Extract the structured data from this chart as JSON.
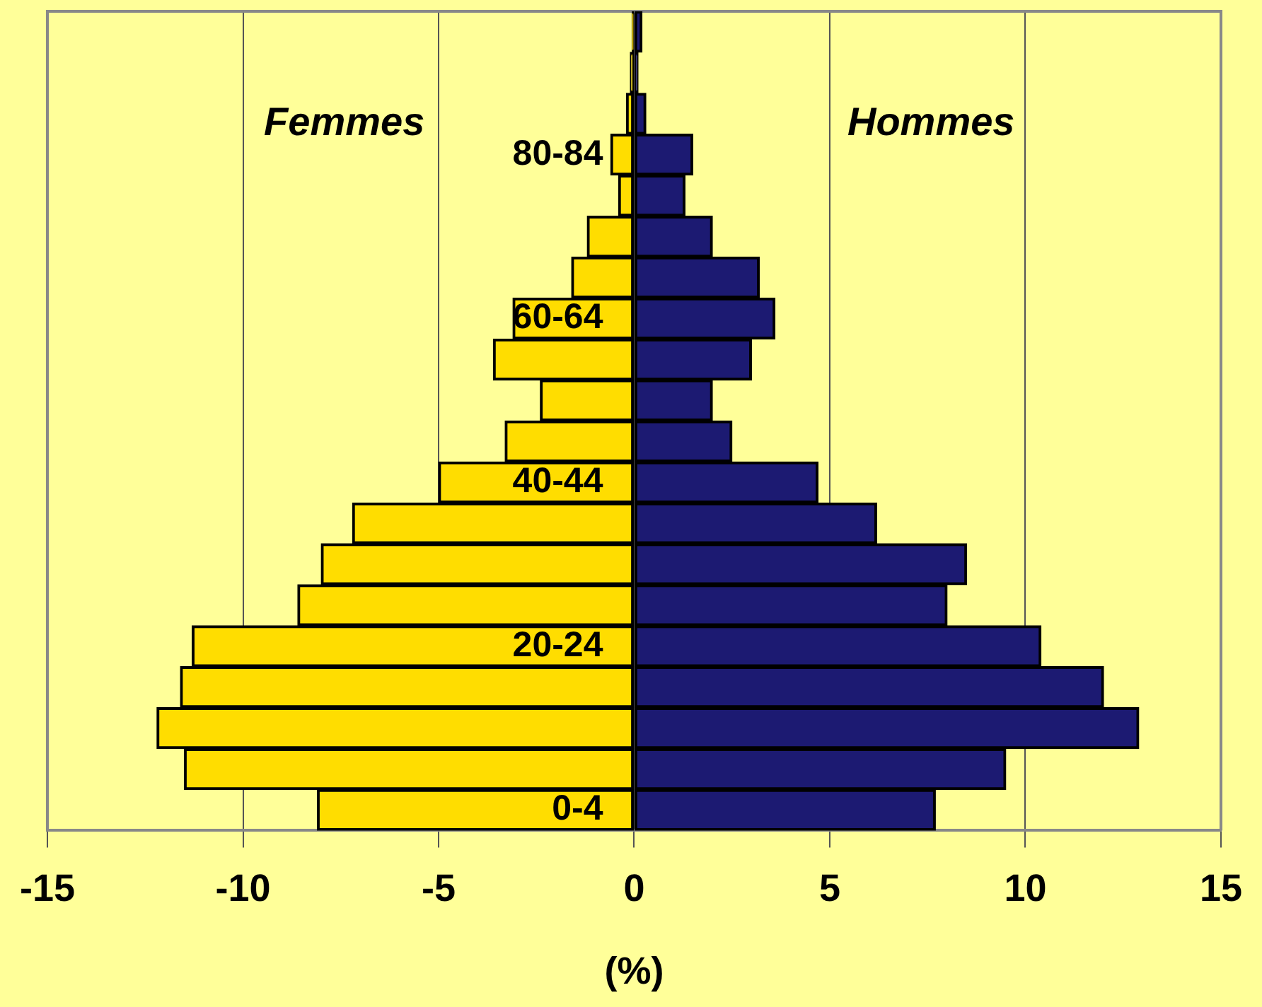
{
  "chart_data": {
    "type": "bar",
    "orientation": "horizontal",
    "stacked": true,
    "categories": [
      null,
      null,
      null,
      "80-84",
      null,
      null,
      null,
      "60-64",
      null,
      null,
      null,
      "40-44",
      null,
      null,
      null,
      "20-24",
      null,
      null,
      null,
      "0-4"
    ],
    "series": [
      {
        "color": "#ffdd00",
        "values": [
          -0.05,
          -0.1,
          -0.2,
          -0.6,
          -0.4,
          -1.2,
          -1.6,
          -3.1,
          -3.6,
          -2.4,
          -3.3,
          -5.0,
          -7.2,
          -8.0,
          -8.6,
          -11.3,
          -11.6,
          -12.2,
          -11.5,
          -8.1
        ]
      },
      {
        "color": "#1c1a72",
        "values": [
          0.2,
          0.1,
          0.3,
          1.5,
          1.3,
          2.0,
          3.2,
          3.6,
          3.0,
          2.0,
          2.5,
          4.7,
          6.2,
          8.5,
          8.0,
          10.4,
          12.0,
          12.9,
          9.5,
          7.7
        ]
      }
    ],
    "xlim": [
      -15,
      15
    ],
    "xticks": [
      -15,
      -10,
      -5,
      0,
      5,
      10,
      15
    ],
    "xlabel": "(%)",
    "annotations": [
      "Femmes",
      "Hommes"
    ],
    "grid": "x",
    "legend": false
  }
}
